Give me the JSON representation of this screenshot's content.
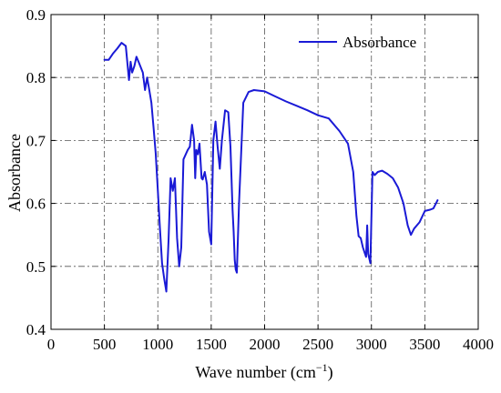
{
  "chart_data": {
    "type": "line",
    "title": "",
    "xlabel": "Wave number (cm",
    "xlabel_sup": "−1",
    "xlabel_close": ")",
    "ylabel": "Absorbance",
    "xlim": [
      0,
      4000
    ],
    "ylim": [
      0.4,
      0.9
    ],
    "xticks": [
      0,
      500,
      1000,
      1500,
      2000,
      2500,
      3000,
      3500,
      4000
    ],
    "yticks": [
      0.4,
      0.5,
      0.6,
      0.7,
      0.8,
      0.9
    ],
    "xtick_labels": [
      "0",
      "500",
      "1000",
      "1500",
      "2000",
      "2500",
      "3000",
      "3500",
      "4000"
    ],
    "ytick_labels": [
      "0.4",
      "0.5",
      "0.6",
      "0.7",
      "0.8",
      "0.9"
    ],
    "grid": true,
    "grid_style": "dash-dot",
    "legend": {
      "position": "top-right"
    },
    "series": [
      {
        "name": "Absorbance",
        "color": "#1a1ad6",
        "x": [
          500,
          540,
          580,
          620,
          660,
          700,
          730,
          745,
          760,
          780,
          800,
          820,
          860,
          880,
          900,
          920,
          940,
          960,
          980,
          1000,
          1020,
          1040,
          1060,
          1080,
          1100,
          1120,
          1140,
          1160,
          1180,
          1200,
          1220,
          1240,
          1280,
          1300,
          1320,
          1340,
          1350,
          1360,
          1375,
          1390,
          1410,
          1420,
          1440,
          1460,
          1480,
          1500,
          1520,
          1540,
          1560,
          1580,
          1600,
          1630,
          1660,
          1680,
          1700,
          1710,
          1720,
          1730,
          1740,
          1760,
          1800,
          1850,
          1900,
          2000,
          2100,
          2200,
          2300,
          2400,
          2500,
          2600,
          2700,
          2780,
          2830,
          2860,
          2880,
          2900,
          2920,
          2940,
          2950,
          2960,
          2970,
          2990,
          3010,
          3030,
          3060,
          3100,
          3150,
          3200,
          3250,
          3300,
          3340,
          3370,
          3400,
          3450,
          3500,
          3550,
          3580,
          3620
        ],
        "y": [
          0.828,
          0.828,
          0.838,
          0.846,
          0.855,
          0.85,
          0.796,
          0.825,
          0.808,
          0.818,
          0.833,
          0.825,
          0.808,
          0.78,
          0.8,
          0.78,
          0.76,
          0.72,
          0.68,
          0.62,
          0.56,
          0.505,
          0.48,
          0.46,
          0.54,
          0.64,
          0.62,
          0.64,
          0.545,
          0.5,
          0.53,
          0.67,
          0.685,
          0.69,
          0.725,
          0.7,
          0.64,
          0.685,
          0.678,
          0.695,
          0.64,
          0.638,
          0.65,
          0.63,
          0.555,
          0.535,
          0.7,
          0.73,
          0.69,
          0.655,
          0.7,
          0.748,
          0.745,
          0.69,
          0.59,
          0.555,
          0.51,
          0.495,
          0.49,
          0.6,
          0.76,
          0.777,
          0.78,
          0.778,
          0.77,
          0.762,
          0.755,
          0.748,
          0.74,
          0.735,
          0.715,
          0.695,
          0.65,
          0.58,
          0.548,
          0.545,
          0.53,
          0.52,
          0.515,
          0.565,
          0.52,
          0.505,
          0.65,
          0.645,
          0.65,
          0.652,
          0.647,
          0.64,
          0.625,
          0.6,
          0.565,
          0.55,
          0.56,
          0.57,
          0.588,
          0.59,
          0.592,
          0.605
        ]
      }
    ]
  }
}
